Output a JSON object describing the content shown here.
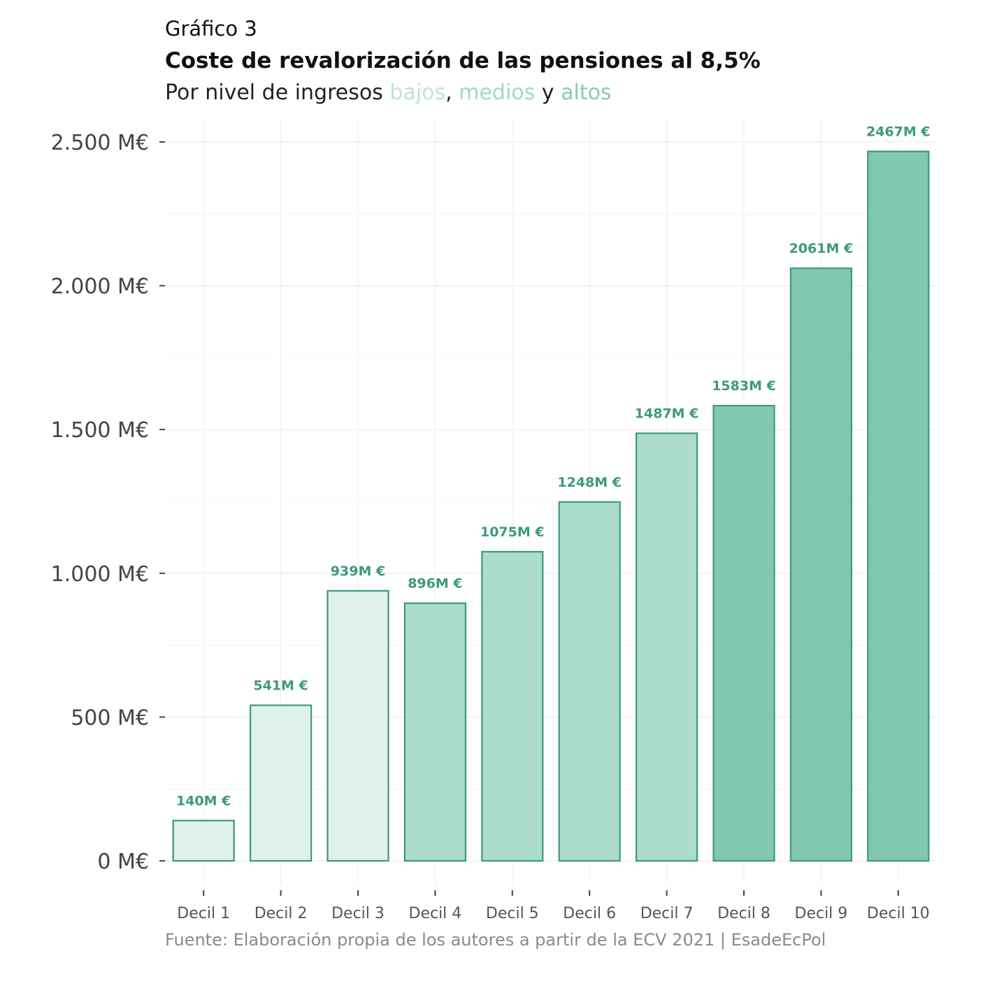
{
  "header": {
    "kicker": "Gráfico 3",
    "title": "Coste de revalorización de las pensiones al 8,5%",
    "subtitle_prefix": "Por nivel de ingresos ",
    "subtitle_low": "bajos",
    "subtitle_sep1": ", ",
    "subtitle_mid": "medios",
    "subtitle_sep2": " y ",
    "subtitle_high": "altos"
  },
  "footer": {
    "source": "Fuente: Elaboración propia de los autores a partir de la ECV 2021 | EsadeEcPol"
  },
  "colors": {
    "low": "#dff1ec",
    "mid": "#acdccb",
    "high": "#82c8b0",
    "stroke": "#3d9a78",
    "label": "#3d9a78",
    "subtitle_low": "#bfe3d6",
    "subtitle_mid": "#a3d9c5",
    "subtitle_high": "#86cbb2"
  },
  "chart_data": {
    "type": "bar",
    "categories": [
      "Decil 1",
      "Decil 2",
      "Decil 3",
      "Decil 4",
      "Decil 5",
      "Decil 6",
      "Decil 7",
      "Decil 8",
      "Decil 9",
      "Decil 10"
    ],
    "values": [
      140,
      541,
      939,
      896,
      1075,
      1248,
      1487,
      1583,
      2061,
      2467
    ],
    "data_labels": [
      "140M €",
      "541M €",
      "939M €",
      "896M €",
      "1075M €",
      "1248M €",
      "1487M €",
      "1583M €",
      "2061M €",
      "2467M €"
    ],
    "groups": [
      "low",
      "low",
      "low",
      "mid",
      "mid",
      "mid",
      "mid",
      "high",
      "high",
      "high"
    ],
    "unit": "M€",
    "yticks": [
      0,
      500,
      1000,
      1500,
      2000,
      2500
    ],
    "ytick_labels": [
      "0 M€",
      "500 M€",
      "1.000 M€",
      "1.500 M€",
      "2.000 M€",
      "2.500 M€"
    ],
    "ylim": [
      -140,
      2580
    ],
    "grid": true,
    "xlabel": "",
    "ylabel": ""
  }
}
